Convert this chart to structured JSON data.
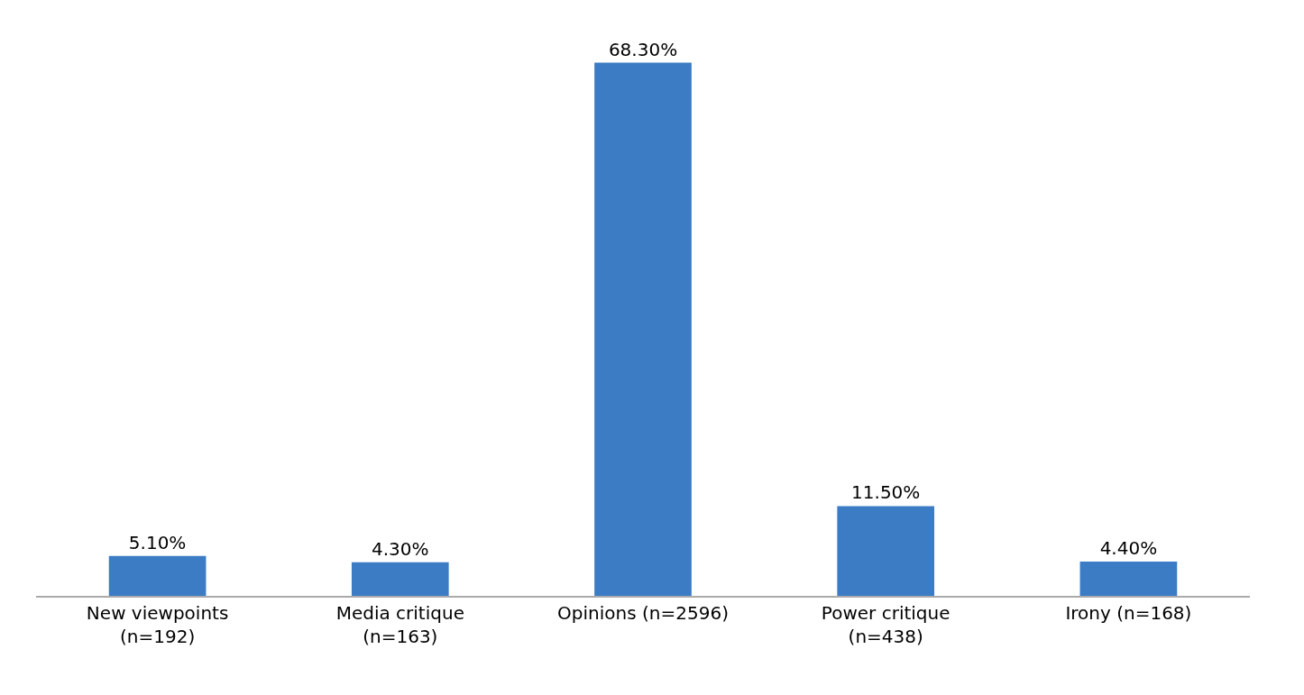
{
  "chart_data": {
    "type": "bar",
    "categories": [
      "New viewpoints\n(n=192)",
      "Media critique\n(n=163)",
      "Opinions (n=2596)",
      "Power critique\n(n=438)",
      "Irony (n=168)"
    ],
    "values": [
      5.1,
      4.3,
      68.3,
      11.5,
      4.4
    ],
    "value_labels": [
      "5.10%",
      "4.30%",
      "68.30%",
      "11.50%",
      "4.40%"
    ],
    "color": "#3b7cc4"
  }
}
